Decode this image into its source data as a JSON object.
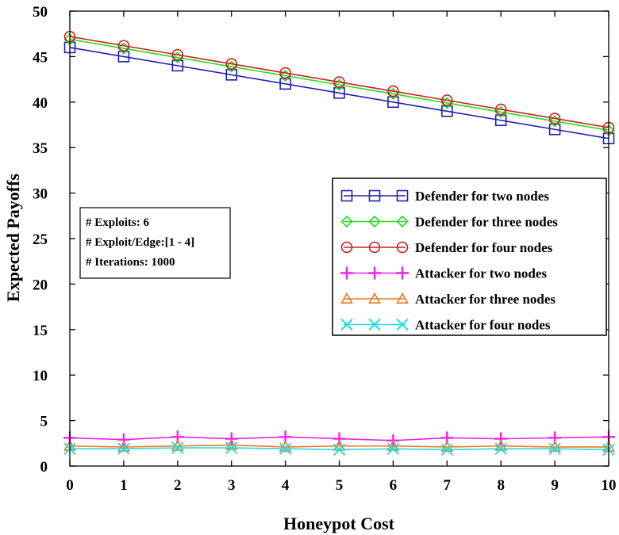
{
  "chart_data": {
    "type": "line",
    "title": "",
    "xlabel": "Honeypot Cost",
    "ylabel": "Expected Payoffs",
    "xlim": [
      0,
      10
    ],
    "ylim": [
      0,
      50
    ],
    "x_ticks": [
      0,
      1,
      2,
      3,
      4,
      5,
      6,
      7,
      8,
      9,
      10
    ],
    "y_ticks": [
      0,
      5,
      10,
      15,
      20,
      25,
      30,
      35,
      40,
      45,
      50
    ],
    "grid": false,
    "legend_position": "right-middle",
    "x": [
      0,
      1,
      2,
      3,
      4,
      5,
      6,
      7,
      8,
      9,
      10
    ],
    "series": [
      {
        "name": "Defender for two nodes",
        "color": "#2020b0",
        "marker": "square",
        "values": [
          46.0,
          45.0,
          44.0,
          43.0,
          42.0,
          41.0,
          40.0,
          39.0,
          38.0,
          37.0,
          36.0
        ]
      },
      {
        "name": "Defender for three nodes",
        "color": "#22dd22",
        "marker": "diamond",
        "values": [
          46.9,
          45.9,
          44.9,
          43.9,
          42.9,
          41.9,
          40.9,
          39.9,
          38.9,
          37.9,
          36.9
        ]
      },
      {
        "name": "Defender for four nodes",
        "color": "#cc2020",
        "marker": "circle",
        "values": [
          47.2,
          46.2,
          45.2,
          44.2,
          43.2,
          42.2,
          41.2,
          40.2,
          39.2,
          38.2,
          37.2
        ]
      },
      {
        "name": "Attacker for two nodes",
        "color": "#ee22ee",
        "marker": "plus",
        "values": [
          3.1,
          2.9,
          3.2,
          3.0,
          3.2,
          3.0,
          2.8,
          3.1,
          3.0,
          3.1,
          3.2
        ]
      },
      {
        "name": "Attacker for three nodes",
        "color": "#ee7722",
        "marker": "triangle",
        "values": [
          2.2,
          2.1,
          2.2,
          2.3,
          2.1,
          2.2,
          2.2,
          2.1,
          2.2,
          2.1,
          2.1
        ]
      },
      {
        "name": "Attacker for four nodes",
        "color": "#22dddd",
        "marker": "x",
        "values": [
          1.9,
          1.9,
          2.0,
          2.0,
          1.9,
          1.8,
          1.9,
          1.8,
          1.9,
          1.9,
          1.8
        ]
      }
    ],
    "annotation_lines": [
      "# Exploits: 6",
      "# Exploit/Edge:[1 - 4]",
      "# Iterations: 1000"
    ]
  }
}
